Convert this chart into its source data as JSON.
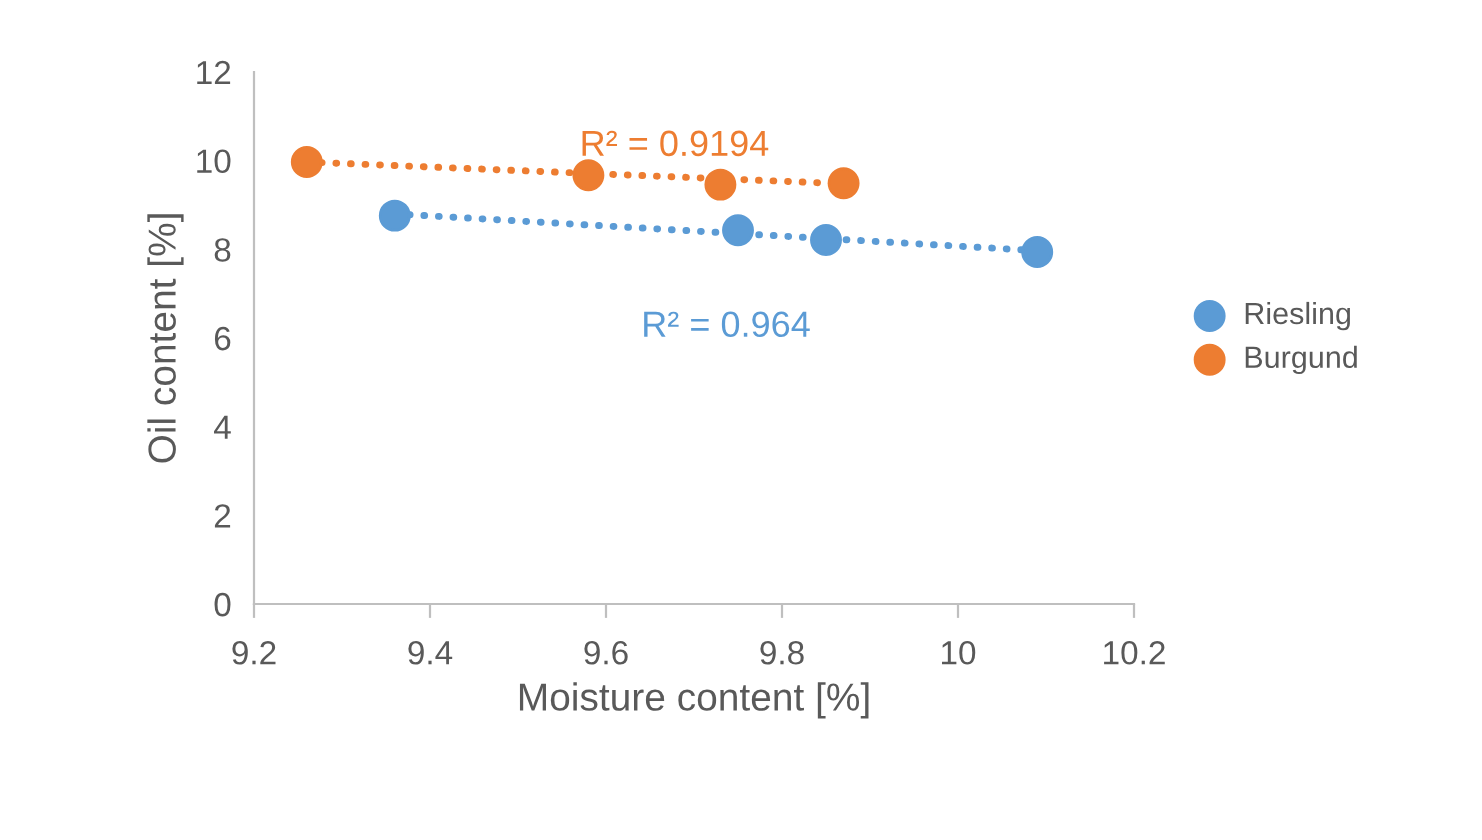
{
  "chart_data": {
    "type": "scatter",
    "xlabel": "Moisture content [%]",
    "ylabel": "Oil content [%]",
    "xlim": [
      9.2,
      10.2
    ],
    "xticks": [
      9.2,
      9.4,
      9.6,
      9.8,
      10,
      10.2
    ],
    "ylim": [
      0,
      12
    ],
    "yticks": [
      0,
      2,
      4,
      6,
      8,
      10,
      12
    ],
    "grid": false,
    "legend": "right",
    "marker": "circle",
    "series": [
      {
        "name": "Riesling",
        "color": "#5b9bd5",
        "x": [
          9.36,
          9.75,
          9.85,
          10.09
        ],
        "values": [
          8.76,
          8.43,
          8.21,
          7.94
        ]
      },
      {
        "name": "Burgund",
        "color": "#ed7d31",
        "x": [
          9.26,
          9.58,
          9.73,
          9.87
        ],
        "values": [
          9.97,
          9.67,
          9.46,
          9.49
        ]
      },
      {
        "type": "line",
        "color": "#5b9bd5",
        "line_style": "dotted",
        "marker": "none",
        "x": [
          9.36,
          10.09
        ],
        "values": [
          8.8,
          7.97
        ]
      },
      {
        "type": "line",
        "color": "#ed7d31",
        "line_style": "dotted",
        "marker": "none",
        "x": [
          9.26,
          9.87
        ],
        "values": [
          9.97,
          9.48
        ]
      }
    ],
    "annotations": [
      "R² = 0.964",
      "R² = 0.9194"
    ]
  }
}
